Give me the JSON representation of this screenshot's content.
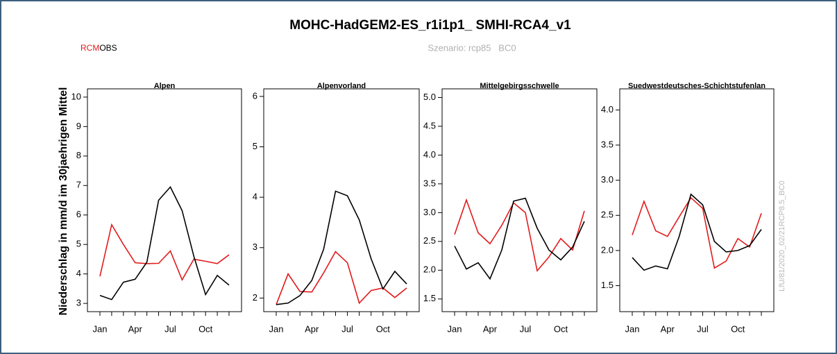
{
  "title": "MOHC-HadGEM2-ES_r1i1p1_ SMHI-RCA4_v1",
  "subtitle": "Szenario: rcp85   BC0",
  "ylabel": "Niederschlag in mm/d im 30jaehrigen Mittel",
  "note": "LfU/81/2020_02/21RCP8.5_BC0",
  "chart_data": [
    {
      "type": "line",
      "title": "Alpen",
      "categories": [
        "Jan",
        null,
        null,
        "Apr",
        null,
        null,
        "Jul",
        null,
        null,
        "Oct",
        null,
        null
      ],
      "series": [
        {
          "name": "RCM",
          "color": "#e31a1c",
          "values": [
            3.92,
            5.67,
            5.0,
            4.38,
            4.35,
            4.36,
            4.78,
            3.8,
            4.5,
            4.43,
            4.35,
            4.65
          ]
        },
        {
          "name": "OBS",
          "color": "#000000",
          "values": [
            3.27,
            3.13,
            3.72,
            3.82,
            4.4,
            6.5,
            6.95,
            6.15,
            4.6,
            3.3,
            3.95,
            3.62
          ]
        }
      ],
      "ylim": [
        2.72,
        10.28
      ],
      "yticks": [
        3,
        4,
        5,
        6,
        7,
        8,
        9,
        10
      ]
    },
    {
      "type": "line",
      "title": "Alpenvorland",
      "categories": [
        "Jan",
        null,
        null,
        "Apr",
        null,
        null,
        "Jul",
        null,
        null,
        "Oct",
        null,
        null
      ],
      "series": [
        {
          "name": "RCM",
          "color": "#e31a1c",
          "values": [
            1.87,
            2.48,
            2.13,
            2.12,
            2.5,
            2.92,
            2.7,
            1.9,
            2.15,
            2.2,
            2.01,
            2.2
          ]
        },
        {
          "name": "OBS",
          "color": "#000000",
          "values": [
            1.87,
            1.9,
            2.05,
            2.35,
            2.97,
            4.12,
            4.03,
            3.55,
            2.78,
            2.18,
            2.53,
            2.28
          ]
        }
      ],
      "ylim": [
        1.73,
        6.15
      ],
      "yticks": [
        2,
        3,
        4,
        5,
        6
      ]
    },
    {
      "type": "line",
      "title": "Mittelgebirgsschwelle",
      "categories": [
        "Jan",
        null,
        null,
        "Apr",
        null,
        null,
        "Jul",
        null,
        null,
        "Oct",
        null,
        null
      ],
      "series": [
        {
          "name": "RCM",
          "color": "#e31a1c",
          "values": [
            2.62,
            3.22,
            2.65,
            2.46,
            2.78,
            3.17,
            3.0,
            1.99,
            2.23,
            2.55,
            2.35,
            3.03
          ]
        },
        {
          "name": "OBS",
          "color": "#000000",
          "values": [
            2.42,
            2.02,
            2.13,
            1.85,
            2.35,
            3.2,
            3.25,
            2.73,
            2.35,
            2.18,
            2.4,
            2.85
          ]
        }
      ],
      "ylim": [
        1.28,
        5.15
      ],
      "yticks": [
        1.5,
        {
          "value": 2,
          "label": "2.0"
        },
        2.5,
        {
          "value": 3,
          "label": "3.0"
        },
        3.5,
        {
          "value": 4,
          "label": "4.0"
        },
        4.5,
        {
          "value": 5,
          "label": "5.0"
        }
      ]
    },
    {
      "type": "line",
      "title": "Suedwestdeutsches-Schichtstufenlan",
      "categories": [
        "Jan",
        null,
        null,
        "Apr",
        null,
        null,
        "Jul",
        null,
        null,
        "Oct",
        null,
        null
      ],
      "series": [
        {
          "name": "RCM",
          "color": "#e31a1c",
          "values": [
            2.22,
            2.7,
            2.28,
            2.2,
            2.48,
            2.75,
            2.6,
            1.75,
            1.85,
            2.17,
            2.05,
            2.53
          ]
        },
        {
          "name": "OBS",
          "color": "#000000",
          "values": [
            1.9,
            1.72,
            1.78,
            1.74,
            2.2,
            2.8,
            2.65,
            2.13,
            1.98,
            2.0,
            2.07,
            2.3
          ]
        }
      ],
      "ylim": [
        1.13,
        4.3
      ],
      "yticks": [
        1.5,
        {
          "value": 2,
          "label": "2.0"
        },
        2.5,
        {
          "value": 3,
          "label": "3.0"
        },
        3.5,
        {
          "value": 4,
          "label": "4.0"
        }
      ]
    }
  ]
}
